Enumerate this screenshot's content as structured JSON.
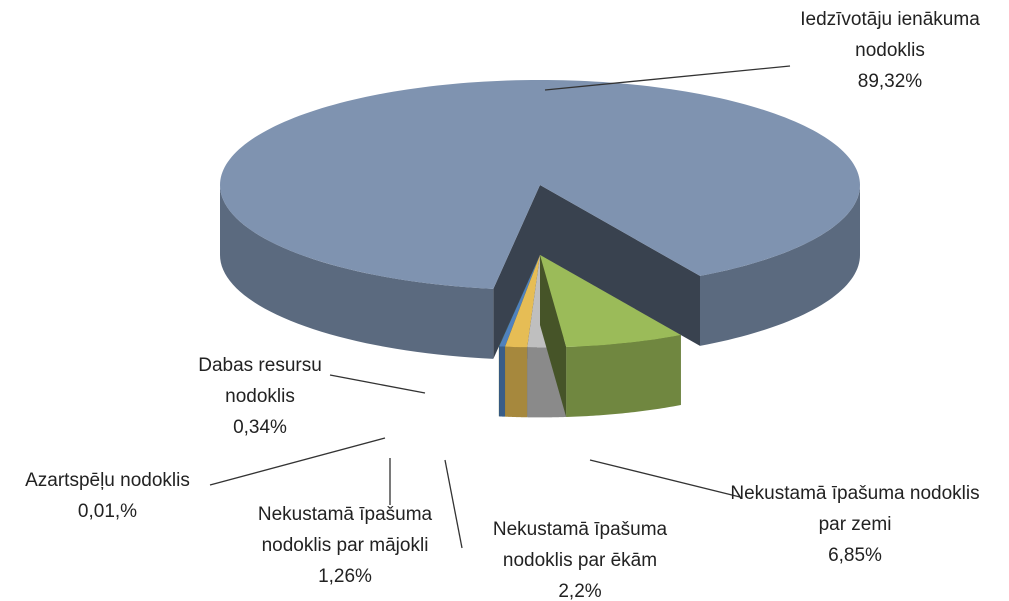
{
  "chart_data": {
    "type": "pie3d",
    "categories": [
      "Iedzīvotāju ienākuma nodoklis",
      "Nekustamā īpašuma nodoklis par zemi",
      "Nekustamā īpašuma nodoklis par ēkām",
      "Nekustamā īpašuma nodoklis par mājokli",
      "Dabas resursu nodoklis",
      "Azartspēļu nodoklis"
    ],
    "values": [
      89.32,
      6.85,
      2.2,
      1.26,
      0.34,
      0.01
    ],
    "value_labels": [
      "89,32%",
      "6,85%",
      "2,2%",
      "1,26%",
      "0,34%",
      "0,01,%"
    ],
    "colors": [
      "#7f93b0",
      "#9bbb59",
      "#bfbfbf",
      "#e6bd55",
      "#4f81bd",
      "#4f8a2a"
    ]
  }
}
